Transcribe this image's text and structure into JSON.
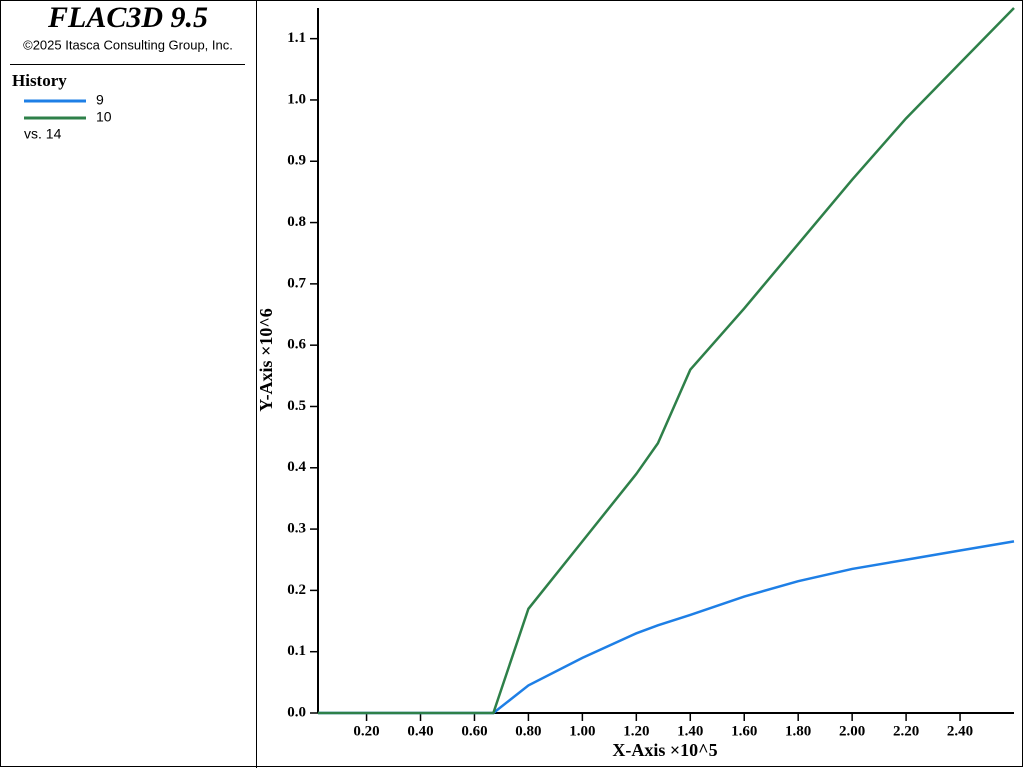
{
  "header": {
    "title": "FLAC3D 9.5",
    "copyright": "©2025 Itasca Consulting Group, Inc."
  },
  "chart_data": {
    "type": "line",
    "legend_title": "History",
    "legend_note": "vs. 14",
    "x_label": "X-Axis ×10^5",
    "y_label": "Y-Axis ×10^6",
    "x": [
      0.02,
      0.67,
      0.8,
      1.0,
      1.2,
      1.28,
      1.4,
      1.6,
      1.8,
      2.0,
      2.2,
      2.4,
      2.6
    ],
    "series": [
      {
        "name": "9",
        "color": "#1e7fe6",
        "values": [
          0,
          0,
          0.045,
          0.09,
          0.13,
          0.143,
          0.16,
          0.19,
          0.215,
          0.235,
          0.25,
          0.265,
          0.28
        ]
      },
      {
        "name": "10",
        "color": "#2e8049",
        "values": [
          0,
          0,
          0.17,
          0.28,
          0.39,
          0.44,
          0.56,
          0.66,
          0.765,
          0.87,
          0.97,
          1.06,
          1.15
        ]
      }
    ],
    "xlim": [
      0.02,
      2.6
    ],
    "ylim": [
      0,
      1.15
    ],
    "xticks": [
      {
        "value": 0.2,
        "label": "0.20"
      },
      {
        "value": 0.4,
        "label": "0.40"
      },
      {
        "value": 0.6,
        "label": "0.60"
      },
      {
        "value": 0.8,
        "label": "0.80"
      },
      {
        "value": 1.0,
        "label": "1.00"
      },
      {
        "value": 1.2,
        "label": "1.20"
      },
      {
        "value": 1.4,
        "label": "1.40"
      },
      {
        "value": 1.6,
        "label": "1.60"
      },
      {
        "value": 1.8,
        "label": "1.80"
      },
      {
        "value": 2.0,
        "label": "2.00"
      },
      {
        "value": 2.2,
        "label": "2.20"
      },
      {
        "value": 2.4,
        "label": "2.40"
      }
    ],
    "yticks": [
      {
        "value": 0,
        "label": "0.0"
      },
      0.1,
      0.2,
      0.3,
      0.4,
      0.5,
      0.6,
      0.7,
      0.8,
      0.9,
      {
        "value": 1.0,
        "label": "1.0"
      },
      1.1
    ],
    "grid": false
  }
}
